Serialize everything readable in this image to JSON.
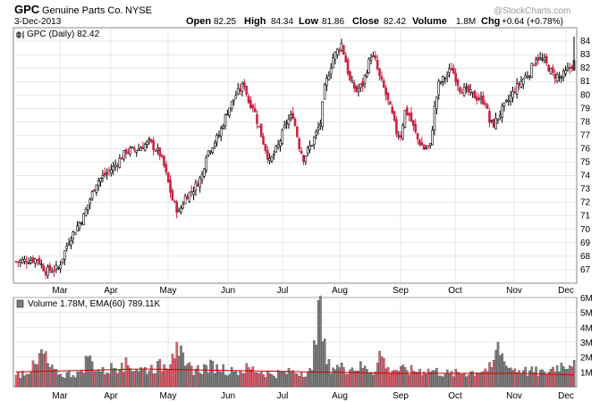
{
  "header": {
    "symbol": "GPC",
    "company": "Genuine Parts Co.",
    "exchange": "NYSE",
    "date": "3-Dec-2013",
    "open_label": "Open",
    "open": "82.25",
    "high_label": "High",
    "high": "84.34",
    "low_label": "Low",
    "low": "81.86",
    "close_label": "Close",
    "close": "82.42",
    "volume_label": "Volume",
    "volume": "1.8M",
    "chg_label": "Chg",
    "chg": "+0.64 (+0.78%)",
    "watermark": "@StockCharts.com"
  },
  "price_legend": "GPC (Daily) 82.42",
  "volume_legend": "Volume 1.78M, EMA(60) 789.11K",
  "colors": {
    "up": "#000000",
    "down": "#cc2244",
    "vol_up": "#808080",
    "vol_down": "#e06070",
    "ema": "#cc0000",
    "grid": "#d0d0d0"
  },
  "chart_data": {
    "type": "candlestick",
    "price_ylim": [
      66,
      85
    ],
    "price_ticks": [
      "67",
      "68",
      "69",
      "70",
      "71",
      "72",
      "73",
      "74",
      "75",
      "76",
      "77",
      "78",
      "79",
      "80",
      "81",
      "82",
      "83",
      "84"
    ],
    "volume_ylim": [
      0,
      6
    ],
    "volume_ticks": [
      "1M",
      "2M",
      "3M",
      "4M",
      "5M",
      "6M"
    ],
    "x_labels": [
      "Mar",
      "Apr",
      "May",
      "Jun",
      "Jul",
      "Aug",
      "Sep",
      "Oct",
      "Nov",
      "Dec"
    ],
    "price_path": [
      [
        0,
        67.6
      ],
      [
        10,
        67.8
      ],
      [
        14,
        66.9
      ],
      [
        20,
        67.1
      ],
      [
        25,
        69.2
      ],
      [
        32,
        71.0
      ],
      [
        38,
        73.5
      ],
      [
        46,
        74.6
      ],
      [
        52,
        75.8
      ],
      [
        58,
        76.0
      ],
      [
        63,
        76.5
      ],
      [
        68,
        75.6
      ],
      [
        70,
        74.7
      ],
      [
        74,
        72.2
      ],
      [
        77,
        71.2
      ],
      [
        80,
        72.4
      ],
      [
        84,
        73.0
      ],
      [
        88,
        74.0
      ],
      [
        90,
        75.6
      ],
      [
        96,
        77.0
      ],
      [
        100,
        78.8
      ],
      [
        104,
        80.0
      ],
      [
        108,
        80.8
      ],
      [
        110,
        79.5
      ],
      [
        112,
        79.2
      ],
      [
        116,
        77.0
      ],
      [
        120,
        75.0
      ],
      [
        124,
        76.2
      ],
      [
        128,
        78.0
      ],
      [
        131,
        78.5
      ],
      [
        134,
        76.2
      ],
      [
        136,
        75.3
      ],
      [
        140,
        76.4
      ],
      [
        144,
        77.9
      ],
      [
        146,
        80.5
      ],
      [
        150,
        82.8
      ],
      [
        154,
        83.8
      ],
      [
        156,
        82.5
      ],
      [
        158,
        81.0
      ],
      [
        161,
        80.3
      ],
      [
        164,
        80.8
      ],
      [
        168,
        83.0
      ],
      [
        170,
        82.5
      ],
      [
        172,
        81.3
      ],
      [
        174,
        80.5
      ],
      [
        178,
        78.5
      ],
      [
        180,
        77.2
      ],
      [
        182,
        77.0
      ],
      [
        184,
        78.8
      ],
      [
        186,
        78.5
      ],
      [
        190,
        76.7
      ],
      [
        193,
        76.0
      ],
      [
        196,
        76.2
      ],
      [
        198,
        79.0
      ],
      [
        200,
        80.8
      ],
      [
        204,
        81.5
      ],
      [
        206,
        82.0
      ],
      [
        210,
        80.5
      ],
      [
        214,
        80.2
      ],
      [
        218,
        79.8
      ],
      [
        222,
        79.5
      ],
      [
        224,
        78.0
      ],
      [
        226,
        77.8
      ],
      [
        230,
        78.9
      ],
      [
        233,
        79.6
      ],
      [
        236,
        80.4
      ],
      [
        240,
        81.2
      ],
      [
        243,
        81.7
      ],
      [
        246,
        82.8
      ],
      [
        250,
        82.5
      ],
      [
        254,
        81.5
      ],
      [
        258,
        81.3
      ],
      [
        262,
        82.0
      ],
      [
        264,
        82.42
      ]
    ],
    "volume_path": [
      [
        0,
        0.8
      ],
      [
        10,
        1.5
      ],
      [
        12,
        2.5
      ],
      [
        16,
        1.3
      ],
      [
        20,
        0.8
      ],
      [
        30,
        1.0
      ],
      [
        34,
        2.0
      ],
      [
        40,
        1.0
      ],
      [
        50,
        1.6
      ],
      [
        60,
        1.2
      ],
      [
        70,
        1.5
      ],
      [
        74,
        2.2
      ],
      [
        76,
        3.0
      ],
      [
        80,
        1.4
      ],
      [
        85,
        1.2
      ],
      [
        95,
        1.5
      ],
      [
        103,
        1.0
      ],
      [
        110,
        1.3
      ],
      [
        120,
        0.9
      ],
      [
        130,
        1.0
      ],
      [
        140,
        1.1
      ],
      [
        143,
        5.8
      ],
      [
        147,
        1.5
      ],
      [
        155,
        1.3
      ],
      [
        165,
        1.4
      ],
      [
        170,
        1.0
      ],
      [
        172,
        2.4
      ],
      [
        176,
        1.3
      ],
      [
        185,
        1.1
      ],
      [
        195,
        1.2
      ],
      [
        205,
        0.9
      ],
      [
        215,
        1.0
      ],
      [
        225,
        1.3
      ],
      [
        228,
        3.0
      ],
      [
        232,
        1.4
      ],
      [
        240,
        1.1
      ],
      [
        250,
        1.0
      ],
      [
        258,
        1.6
      ],
      [
        264,
        1.78
      ]
    ],
    "ema_path": [
      [
        0,
        1.0
      ],
      [
        60,
        1.2
      ],
      [
        120,
        1.05
      ],
      [
        180,
        0.9
      ],
      [
        240,
        0.9
      ],
      [
        264,
        0.79
      ]
    ]
  }
}
